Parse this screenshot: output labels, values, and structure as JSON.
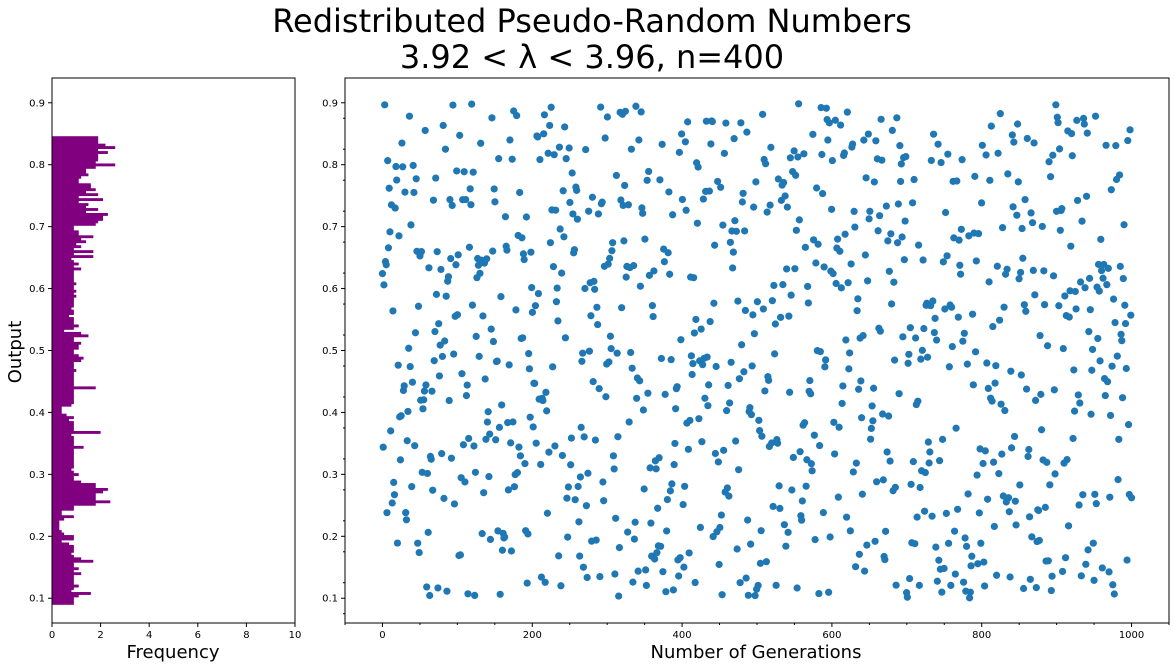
{
  "figure": {
    "title_line1": "Redistributed Pseudo-Random Numbers",
    "title_line2": "3.92 < λ < 3.96,  n=400"
  },
  "colors": {
    "histogram": "#800080",
    "scatter": "#1f77b4"
  },
  "chart_data": [
    {
      "type": "bar",
      "orientation": "horizontal",
      "title": "",
      "xlabel": "Frequency",
      "ylabel": "Output",
      "xlim": [
        0,
        10
      ],
      "ylim": [
        0.06,
        0.94
      ],
      "xticks": [
        0,
        2,
        4,
        6,
        8,
        10
      ],
      "yticks": [
        0.1,
        0.2,
        0.3,
        0.4,
        0.5,
        0.6,
        0.7,
        0.8,
        0.9
      ],
      "bin_start": 0.09,
      "bin_width": 0.004,
      "values": [
        0.9,
        0.9,
        0.9,
        1.1,
        1.6,
        0.8,
        0.9,
        1.1,
        0.9,
        0.9,
        0.9,
        0.9,
        1.2,
        0.9,
        1.1,
        0.9,
        0.9,
        1.7,
        1.2,
        0.9,
        0.8,
        0.9,
        0.9,
        0.9,
        0.7,
        0.4,
        0.9,
        0.9,
        0.5,
        0.4,
        0.3,
        0.3,
        0.3,
        0.3,
        0.5,
        0.9,
        0.4,
        0.4,
        0.9,
        0.9,
        1.8,
        2.4,
        1.8,
        1.8,
        1.8,
        2.1,
        2.3,
        1.8,
        1.8,
        1.2,
        0.9,
        0.9,
        1.1,
        0.9,
        0.8,
        0.9,
        0.9,
        0.9,
        0.9,
        0.9,
        0.9,
        0.9,
        0.9,
        1.3,
        0.9,
        0.9,
        0.9,
        0.9,
        0.8,
        2.0,
        0.9,
        0.9,
        0.9,
        0.9,
        0.7,
        0.9,
        0.6,
        0.4,
        0.4,
        0.4,
        0.8,
        0.9,
        0.9,
        0.9,
        0.9,
        0.9,
        0.9,
        1.8,
        0.9,
        0.9,
        0.9,
        0.9,
        0.9,
        0.9,
        1.0,
        0.9,
        0.9,
        0.9,
        1.2,
        1.3,
        1.1,
        0.9,
        0.9,
        1.1,
        1.1,
        1.2,
        0.9,
        0.9,
        1.5,
        1.2,
        0.5,
        0.9,
        1.1,
        0.9,
        0.9,
        0.9,
        0.7,
        0.9,
        0.9,
        0.8,
        0.9,
        0.9,
        0.9,
        0.9,
        1.0,
        0.9,
        1.0,
        0.9,
        0.9,
        1.0,
        0.9,
        0.9,
        0.9,
        0.9,
        0.9,
        1.2,
        0.9,
        1.1,
        0.9,
        0.8,
        1.7,
        0.9,
        1.7,
        0.9,
        1.2,
        1.0,
        1.4,
        1.2,
        1.7,
        1.1,
        1.1,
        0.9,
        0.9,
        1.8,
        1.9,
        2.1,
        2.1,
        2.3,
        1.4,
        1.9,
        1.4,
        1.5,
        1.1,
        2.1,
        1.1,
        1.9,
        1.4,
        1.8,
        1.6,
        1.6,
        1.1,
        1.1,
        1.2,
        1.5,
        1.4,
        1.4,
        1.8,
        2.6,
        1.8,
        1.9,
        1.9,
        1.9,
        2.3,
        1.9,
        2.6,
        2.2,
        1.9,
        1.9,
        1.9
      ]
    },
    {
      "type": "scatter",
      "title": "",
      "xlabel": "Number of Generations",
      "ylabel": "",
      "xlim": [
        -50,
        1050
      ],
      "ylim": [
        0.06,
        0.94
      ],
      "xticks": [
        0,
        200,
        400,
        600,
        800,
        1000
      ],
      "yticks": [
        0.1,
        0.2,
        0.3,
        0.4,
        0.5,
        0.6,
        0.7,
        0.8,
        0.9
      ],
      "n_points": 1000,
      "x_range": [
        0,
        1000
      ],
      "y_range": [
        0.1,
        0.9
      ],
      "note": "Points scatter roughly uniformly over generations 0–1000 with output between 0.10 and 0.90"
    }
  ]
}
